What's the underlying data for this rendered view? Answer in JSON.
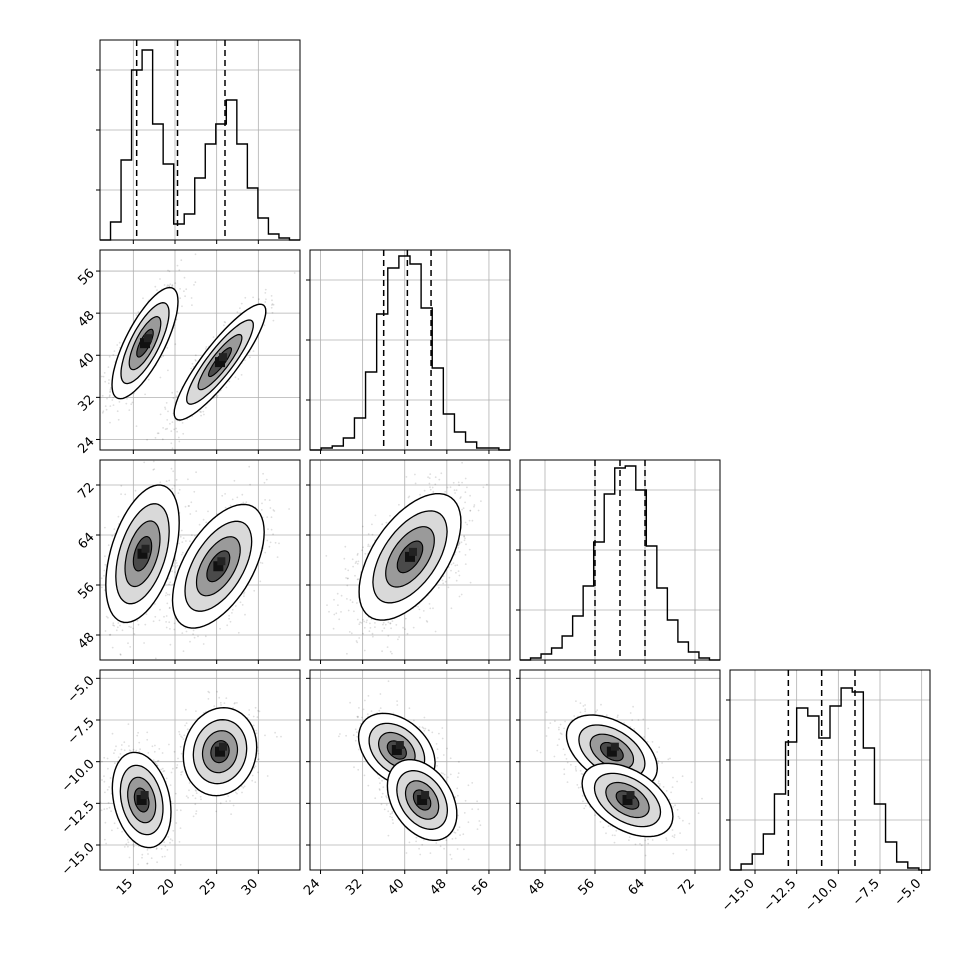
{
  "chart_data": {
    "type": "corner",
    "title": "",
    "dimensions": [
      {
        "index": 0,
        "range": [
          11,
          35
        ],
        "ticks": [
          15,
          20,
          25,
          30
        ],
        "tick_labels": [
          "15",
          "20",
          "25",
          "30"
        ],
        "quantiles": [
          15.4,
          20.3,
          26.0
        ]
      },
      {
        "index": 1,
        "range": [
          22,
          60
        ],
        "ticks": [
          24,
          32,
          40,
          48,
          56
        ],
        "tick_labels": [
          "24",
          "32",
          "40",
          "48",
          "56"
        ],
        "quantiles": [
          36.0,
          40.5,
          45.0
        ]
      },
      {
        "index": 2,
        "range": [
          44,
          76
        ],
        "ticks": [
          48,
          56,
          64,
          72
        ],
        "tick_labels": [
          "48",
          "56",
          "64",
          "72"
        ],
        "quantiles": [
          56.0,
          60.0,
          64.0
        ]
      },
      {
        "index": 3,
        "range": [
          -16.5,
          -4.5
        ],
        "ticks": [
          -15.0,
          -12.5,
          -10.0,
          -7.5,
          -5.0
        ],
        "tick_labels": [
          "−15.0",
          "−12.5",
          "−10.0",
          "−7.5",
          "−5.0"
        ],
        "quantiles": [
          -13.0,
          -11.0,
          -9.0
        ]
      }
    ],
    "histograms": [
      {
        "dim": 0,
        "counts": [
          0,
          0.09,
          0.4,
          0.85,
          0.95,
          0.58,
          0.38,
          0.08,
          0.13,
          0.31,
          0.48,
          0.58,
          0.7,
          0.48,
          0.26,
          0.11,
          0.03,
          0.01,
          0
        ]
      },
      {
        "dim": 1,
        "counts": [
          0,
          0.01,
          0.02,
          0.06,
          0.16,
          0.39,
          0.68,
          0.91,
          0.97,
          0.93,
          0.71,
          0.41,
          0.18,
          0.09,
          0.04,
          0.01,
          0.01,
          0
        ]
      },
      {
        "dim": 2,
        "counts": [
          0,
          0.01,
          0.03,
          0.06,
          0.12,
          0.22,
          0.37,
          0.59,
          0.83,
          0.96,
          0.97,
          0.85,
          0.57,
          0.36,
          0.2,
          0.09,
          0.04,
          0.01,
          0
        ]
      },
      {
        "dim": 3,
        "counts": [
          0,
          0.03,
          0.08,
          0.18,
          0.38,
          0.64,
          0.81,
          0.77,
          0.66,
          0.82,
          0.91,
          0.89,
          0.61,
          0.33,
          0.14,
          0.04,
          0.01,
          0
        ]
      }
    ],
    "modes": [
      {
        "pair": [
          0,
          1
        ],
        "components": [
          {
            "cx": 16.4,
            "cy": 42.3,
            "sx": 1.8,
            "sy": 4.8,
            "rho": 0.75
          },
          {
            "cx": 25.4,
            "cy": 38.7,
            "sx": 2.5,
            "sy": 5.0,
            "rho": 0.88
          }
        ]
      },
      {
        "pair": [
          0,
          2
        ],
        "components": [
          {
            "cx": 16.1,
            "cy": 61.0,
            "sx": 2.0,
            "sy": 5.0,
            "rho": 0.45
          },
          {
            "cx": 25.2,
            "cy": 59.0,
            "sx": 2.5,
            "sy": 4.5,
            "rho": 0.55
          }
        ]
      },
      {
        "pair": [
          0,
          3
        ],
        "components": [
          {
            "cx": 16.0,
            "cy": -12.3,
            "sx": 1.6,
            "sy": 1.3,
            "rho": -0.25
          },
          {
            "cx": 25.4,
            "cy": -9.4,
            "sx": 2.0,
            "sy": 1.2,
            "rho": 0.1
          }
        ]
      },
      {
        "pair": [
          1,
          2
        ],
        "components": [
          {
            "cx": 41.0,
            "cy": 60.5,
            "sx": 4.4,
            "sy": 4.6,
            "rho": 0.55
          }
        ]
      },
      {
        "pair": [
          1,
          3
        ],
        "components": [
          {
            "cx": 38.5,
            "cy": -9.3,
            "sx": 3.3,
            "sy": 1.0,
            "rho": -0.35
          },
          {
            "cx": 43.3,
            "cy": -12.3,
            "sx": 3.0,
            "sy": 1.1,
            "rho": -0.35
          }
        ]
      },
      {
        "pair": [
          2,
          3
        ],
        "components": [
          {
            "cx": 58.7,
            "cy": -9.4,
            "sx": 3.3,
            "sy": 1.0,
            "rho": -0.45
          },
          {
            "cx": 61.2,
            "cy": -12.3,
            "sx": 3.3,
            "sy": 1.0,
            "rho": -0.45
          }
        ]
      }
    ],
    "grid": true
  }
}
